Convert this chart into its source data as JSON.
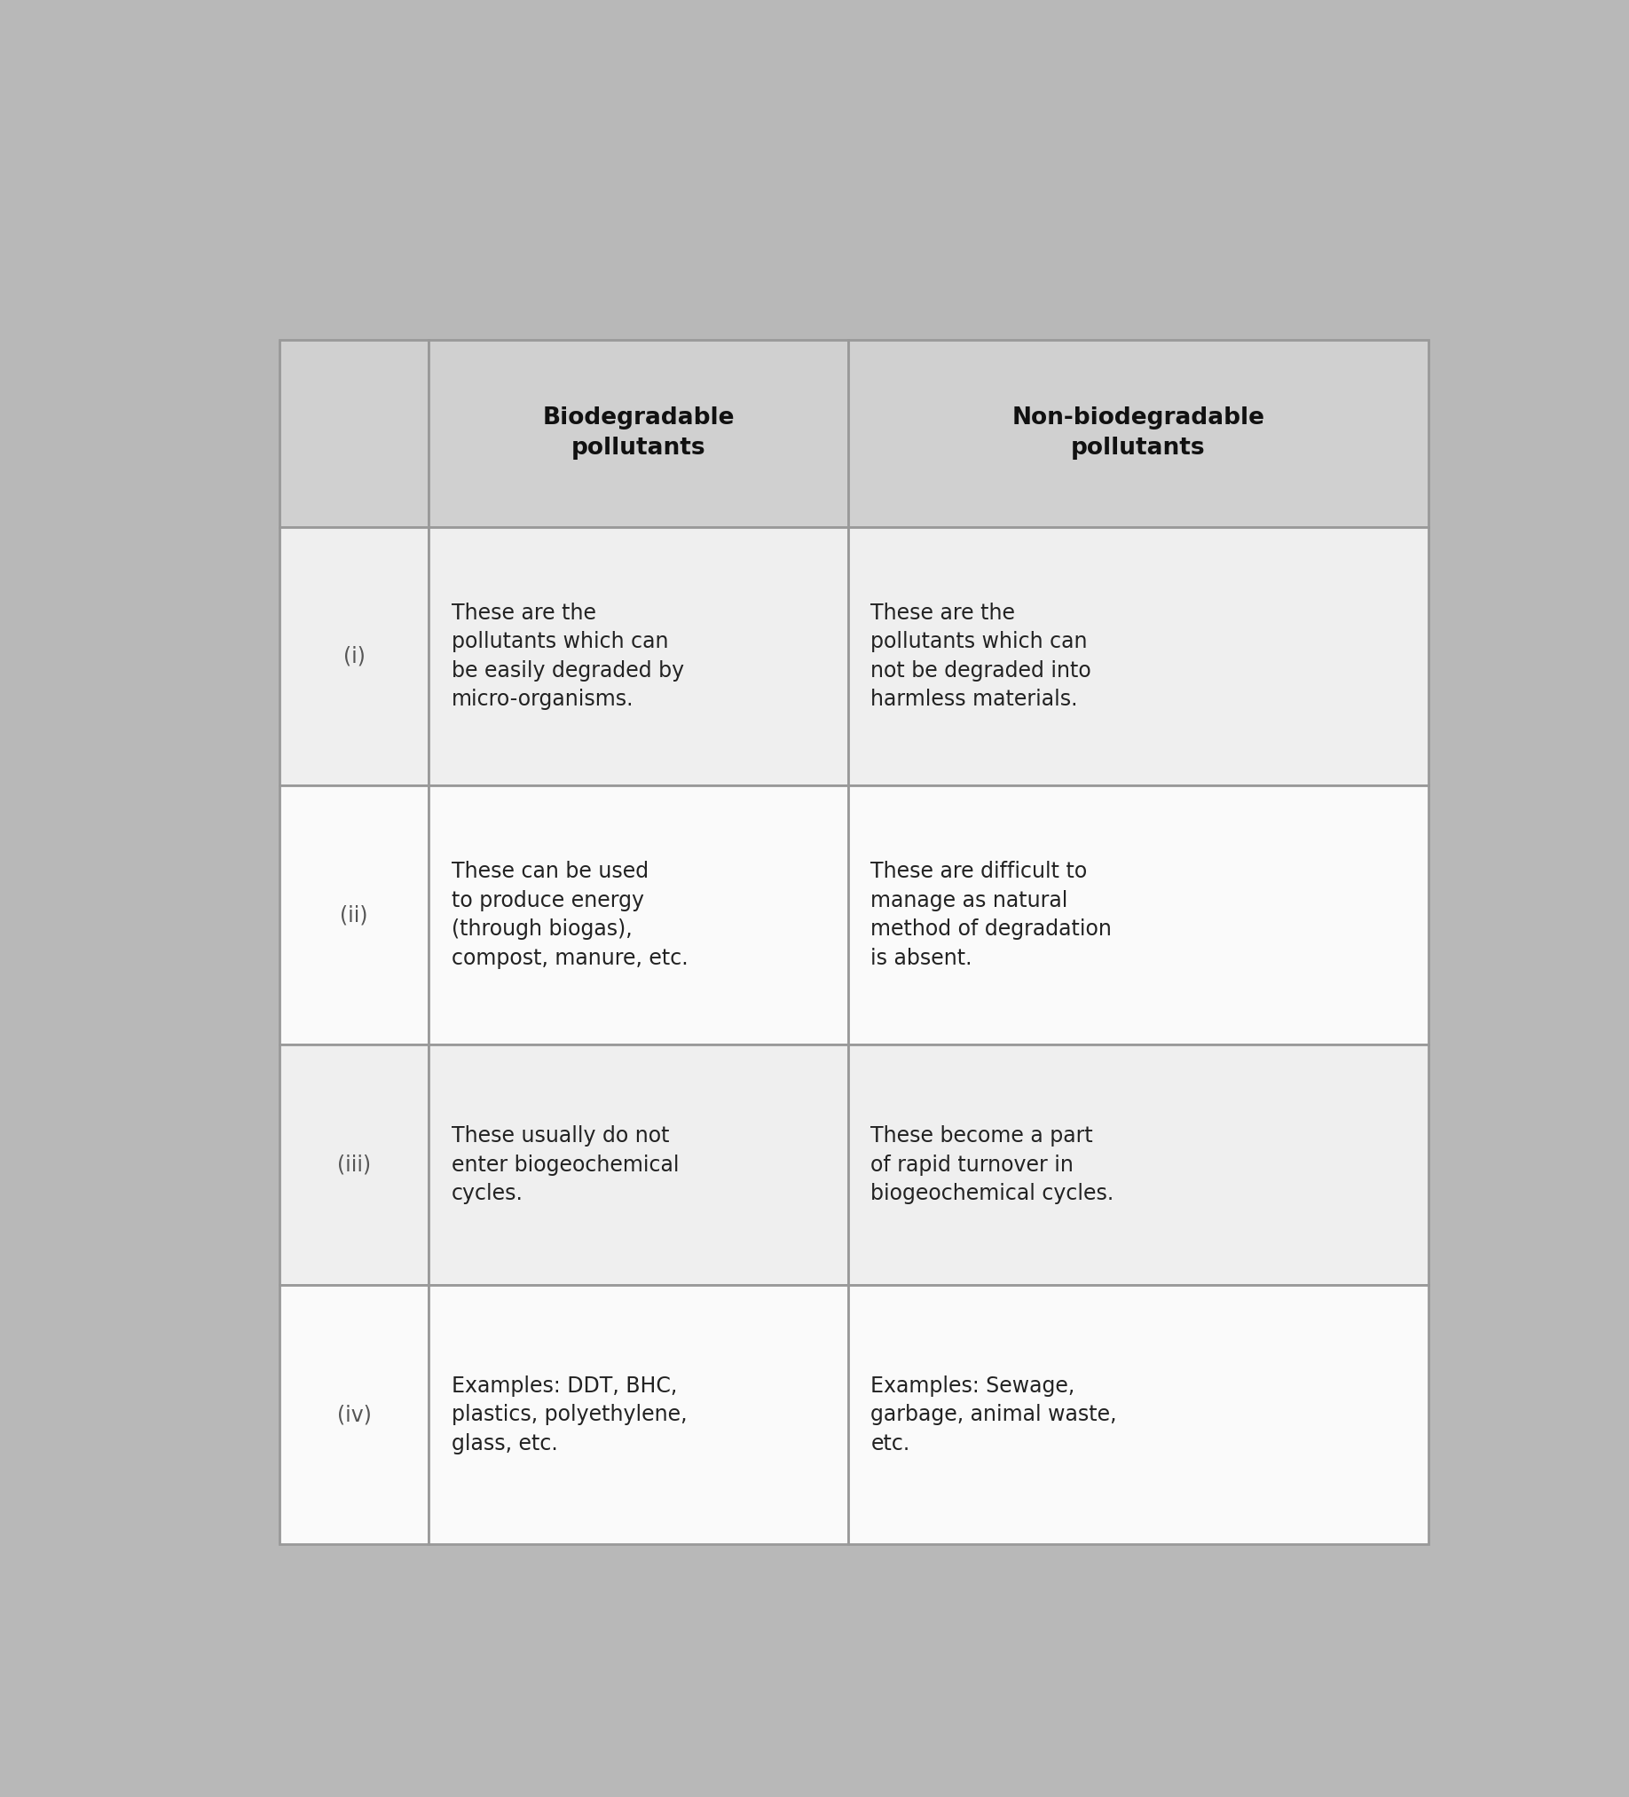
{
  "header": [
    "",
    "Biodegradable\npollutants",
    "Non-biodegradable\npollutants"
  ],
  "rows": [
    {
      "num": "(i)",
      "bio": "These are the\npollutants which can\nbe easily degraded by\nmicro-organisms.",
      "nonbio": "These are the\npollutants which can\nnot be degraded into\nharmless materials."
    },
    {
      "num": "(ii)",
      "bio": "These can be used\nto produce energy\n(through biogas),\ncompost, manure, etc.",
      "nonbio": "These are difficult to\nmanage as natural\nmethod of degradation\nis absent."
    },
    {
      "num": "(iii)",
      "bio": "These usually do not\nenter biogeochemical\ncycles.",
      "nonbio": "These become a part\nof rapid turnover in\nbiogeochemical cycles."
    },
    {
      "num": "(iv)",
      "bio": "Examples: DDT, BHC,\nplastics, polyethylene,\nglass, etc.",
      "nonbio": "Examples: Sewage,\ngarbage, animal waste,\netc."
    }
  ],
  "header_bg": "#d0d0d0",
  "row_bg_even": "#efefef",
  "row_bg_odd": "#fafafa",
  "border_color": "#999999",
  "text_color": "#222222",
  "header_text_color": "#111111",
  "num_color": "#555555",
  "fig_bg": "#b8b8b8"
}
